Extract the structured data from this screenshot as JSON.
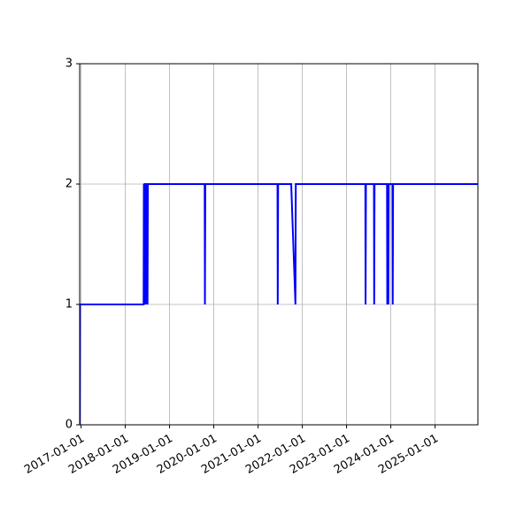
{
  "chart_data": {
    "type": "line",
    "title": "",
    "xlabel": "",
    "ylabel": "",
    "grid": true,
    "x_axis": {
      "type": "date",
      "range": [
        "2016-12-20",
        "2025-12-20"
      ],
      "ticks": [
        "2017-01-01",
        "2018-01-01",
        "2019-01-01",
        "2020-01-01",
        "2021-01-01",
        "2022-01-01",
        "2023-01-01",
        "2024-01-01",
        "2025-01-01"
      ],
      "tick_rotation": 30
    },
    "y_axis": {
      "range": [
        0,
        3
      ],
      "ticks": [
        "0",
        "1",
        "2",
        "3"
      ]
    },
    "series": [
      {
        "color": "#0000ff",
        "points": [
          [
            "2016-12-20",
            0
          ],
          [
            "2016-12-22",
            1
          ],
          [
            "2018-06-01",
            1
          ],
          [
            "2018-06-03",
            2
          ],
          [
            "2018-06-06",
            1
          ],
          [
            "2018-06-08",
            2
          ],
          [
            "2018-06-16",
            2
          ],
          [
            "2018-06-18",
            1
          ],
          [
            "2018-06-21",
            2
          ],
          [
            "2018-07-01",
            2
          ],
          [
            "2018-07-03",
            1
          ],
          [
            "2018-07-06",
            2
          ],
          [
            "2019-10-18",
            2
          ],
          [
            "2019-10-20",
            1
          ],
          [
            "2019-10-23",
            2
          ],
          [
            "2021-06-10",
            2
          ],
          [
            "2021-06-12",
            1
          ],
          [
            "2021-06-15",
            2
          ],
          [
            "2021-10-01",
            2
          ],
          [
            "2021-11-05",
            1
          ],
          [
            "2021-11-08",
            2
          ],
          [
            "2023-06-05",
            2
          ],
          [
            "2023-06-07",
            1
          ],
          [
            "2023-06-10",
            2
          ],
          [
            "2023-08-15",
            2
          ],
          [
            "2023-08-17",
            1
          ],
          [
            "2023-08-20",
            2
          ],
          [
            "2023-12-01",
            2
          ],
          [
            "2023-12-03",
            1
          ],
          [
            "2023-12-06",
            2
          ],
          [
            "2023-12-10",
            2
          ],
          [
            "2023-12-12",
            1
          ],
          [
            "2023-12-15",
            2
          ],
          [
            "2024-01-15",
            2
          ],
          [
            "2024-01-17",
            1
          ],
          [
            "2024-01-20",
            2
          ],
          [
            "2025-12-20",
            2
          ]
        ]
      }
    ]
  }
}
